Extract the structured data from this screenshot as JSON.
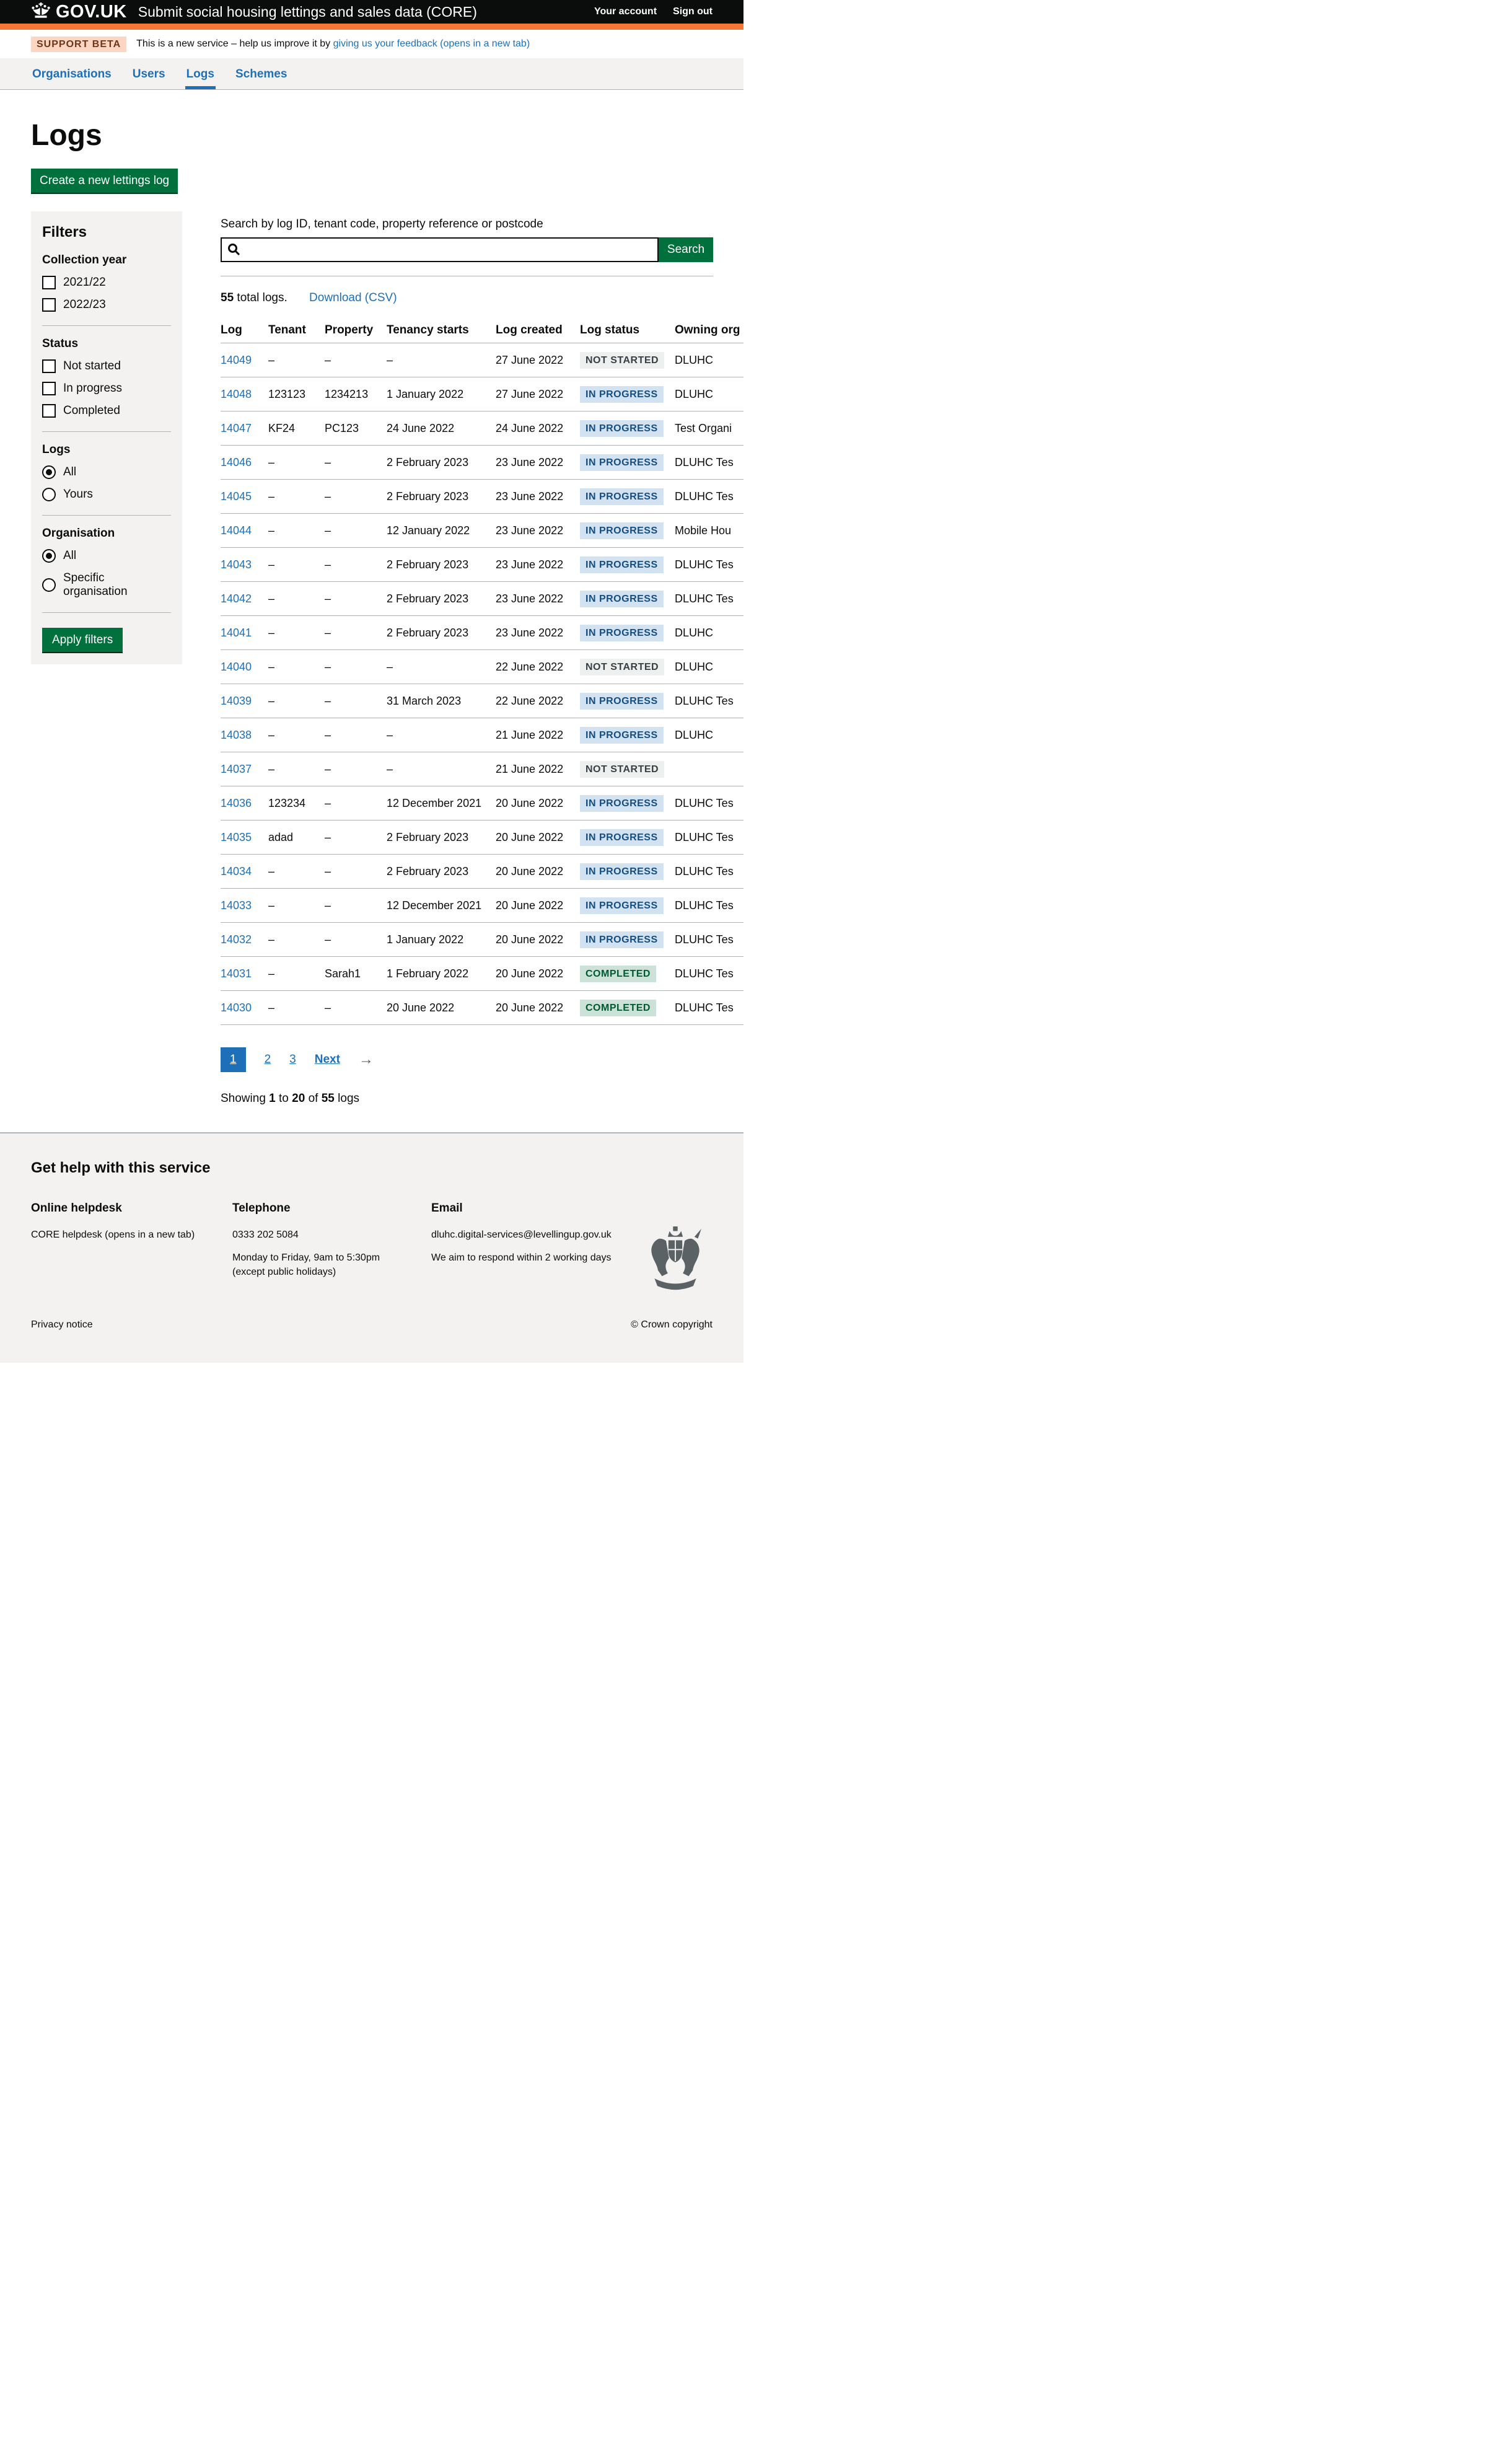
{
  "header": {
    "logo": "GOV.UK",
    "service": "Submit social housing lettings and sales data (CORE)",
    "links": [
      {
        "label": "Your account"
      },
      {
        "label": "Sign out"
      }
    ]
  },
  "phase_banner": {
    "tag": "SUPPORT BETA",
    "text": "This is a new service – help us improve it by",
    "link": "giving us your feedback (opens in a new tab)"
  },
  "nav": {
    "items": [
      {
        "label": "Organisations",
        "active": false
      },
      {
        "label": "Users",
        "active": false
      },
      {
        "label": "Logs",
        "active": true
      },
      {
        "label": "Schemes",
        "active": false
      }
    ]
  },
  "page": {
    "title": "Logs",
    "create_button": "Create a new lettings log"
  },
  "filters": {
    "title": "Filters",
    "apply_button": "Apply filters",
    "groups": [
      {
        "label": "Collection year",
        "type": "checkbox",
        "options": [
          {
            "label": "2021/22",
            "checked": false
          },
          {
            "label": "2022/23",
            "checked": false
          }
        ]
      },
      {
        "label": "Status",
        "type": "checkbox",
        "options": [
          {
            "label": "Not started",
            "checked": false
          },
          {
            "label": "In progress",
            "checked": false
          },
          {
            "label": "Completed",
            "checked": false
          }
        ]
      },
      {
        "label": "Logs",
        "type": "radio",
        "options": [
          {
            "label": "All",
            "checked": true
          },
          {
            "label": "Yours",
            "checked": false
          }
        ]
      },
      {
        "label": "Organisation",
        "type": "radio",
        "options": [
          {
            "label": "All",
            "checked": true
          },
          {
            "label": "Specific organisation",
            "checked": false
          }
        ]
      }
    ]
  },
  "search": {
    "label": "Search by log ID, tenant code, property reference or postcode",
    "value": "",
    "button": "Search"
  },
  "results": {
    "count": "55",
    "label": "total logs.",
    "download_link": "Download (CSV)"
  },
  "table": {
    "columns": [
      "Log",
      "Tenant",
      "Property",
      "Tenancy starts",
      "Log created",
      "Log status",
      "Owning org"
    ],
    "rows": [
      {
        "log": "14049",
        "tenant": "–",
        "property": "–",
        "tenancy": "–",
        "created": "27 June 2022",
        "status": {
          "label": "NOT STARTED",
          "kind": "grey"
        },
        "owning": "DLUHC"
      },
      {
        "log": "14048",
        "tenant": "123123",
        "property": "1234213",
        "tenancy": "1 January 2022",
        "created": "27 June 2022",
        "status": {
          "label": "IN PROGRESS",
          "kind": "blue"
        },
        "owning": "DLUHC"
      },
      {
        "log": "14047",
        "tenant": "KF24",
        "property": "PC123",
        "tenancy": "24 June 2022",
        "created": "24 June 2022",
        "status": {
          "label": "IN PROGRESS",
          "kind": "blue"
        },
        "owning": "Test Organi"
      },
      {
        "log": "14046",
        "tenant": "–",
        "property": "–",
        "tenancy": "2 February 2023",
        "created": "23 June 2022",
        "status": {
          "label": "IN PROGRESS",
          "kind": "blue"
        },
        "owning": "DLUHC Tes"
      },
      {
        "log": "14045",
        "tenant": "–",
        "property": "–",
        "tenancy": "2 February 2023",
        "created": "23 June 2022",
        "status": {
          "label": "IN PROGRESS",
          "kind": "blue"
        },
        "owning": "DLUHC Tes"
      },
      {
        "log": "14044",
        "tenant": "–",
        "property": "–",
        "tenancy": "12 January 2022",
        "created": "23 June 2022",
        "status": {
          "label": "IN PROGRESS",
          "kind": "blue"
        },
        "owning": "Mobile Hou"
      },
      {
        "log": "14043",
        "tenant": "–",
        "property": "–",
        "tenancy": "2 February 2023",
        "created": "23 June 2022",
        "status": {
          "label": "IN PROGRESS",
          "kind": "blue"
        },
        "owning": "DLUHC Tes"
      },
      {
        "log": "14042",
        "tenant": "–",
        "property": "–",
        "tenancy": "2 February 2023",
        "created": "23 June 2022",
        "status": {
          "label": "IN PROGRESS",
          "kind": "blue"
        },
        "owning": "DLUHC Tes"
      },
      {
        "log": "14041",
        "tenant": "–",
        "property": "–",
        "tenancy": "2 February 2023",
        "created": "23 June 2022",
        "status": {
          "label": "IN PROGRESS",
          "kind": "blue"
        },
        "owning": "DLUHC"
      },
      {
        "log": "14040",
        "tenant": "–",
        "property": "–",
        "tenancy": "–",
        "created": "22 June 2022",
        "status": {
          "label": "NOT STARTED",
          "kind": "grey"
        },
        "owning": "DLUHC"
      },
      {
        "log": "14039",
        "tenant": "–",
        "property": "–",
        "tenancy": "31 March 2023",
        "created": "22 June 2022",
        "status": {
          "label": "IN PROGRESS",
          "kind": "blue"
        },
        "owning": "DLUHC Tes"
      },
      {
        "log": "14038",
        "tenant": "–",
        "property": "–",
        "tenancy": "–",
        "created": "21 June 2022",
        "status": {
          "label": "IN PROGRESS",
          "kind": "blue"
        },
        "owning": "DLUHC"
      },
      {
        "log": "14037",
        "tenant": "–",
        "property": "–",
        "tenancy": "–",
        "created": "21 June 2022",
        "status": {
          "label": "NOT STARTED",
          "kind": "grey"
        },
        "owning": ""
      },
      {
        "log": "14036",
        "tenant": "123234",
        "property": "–",
        "tenancy": "12 December 2021",
        "created": "20 June 2022",
        "status": {
          "label": "IN PROGRESS",
          "kind": "blue"
        },
        "owning": "DLUHC Tes"
      },
      {
        "log": "14035",
        "tenant": "adad",
        "property": "–",
        "tenancy": "2 February 2023",
        "created": "20 June 2022",
        "status": {
          "label": "IN PROGRESS",
          "kind": "blue"
        },
        "owning": "DLUHC Tes"
      },
      {
        "log": "14034",
        "tenant": "–",
        "property": "–",
        "tenancy": "2 February 2023",
        "created": "20 June 2022",
        "status": {
          "label": "IN PROGRESS",
          "kind": "blue"
        },
        "owning": "DLUHC Tes"
      },
      {
        "log": "14033",
        "tenant": "–",
        "property": "–",
        "tenancy": "12 December 2021",
        "created": "20 June 2022",
        "status": {
          "label": "IN PROGRESS",
          "kind": "blue"
        },
        "owning": "DLUHC Tes"
      },
      {
        "log": "14032",
        "tenant": "–",
        "property": "–",
        "tenancy": "1 January 2022",
        "created": "20 June 2022",
        "status": {
          "label": "IN PROGRESS",
          "kind": "blue"
        },
        "owning": "DLUHC Tes"
      },
      {
        "log": "14031",
        "tenant": "–",
        "property": "Sarah1",
        "tenancy": "1 February 2022",
        "created": "20 June 2022",
        "status": {
          "label": "COMPLETED",
          "kind": "green"
        },
        "owning": "DLUHC Tes"
      },
      {
        "log": "14030",
        "tenant": "–",
        "property": "–",
        "tenancy": "20 June 2022",
        "created": "20 June 2022",
        "status": {
          "label": "COMPLETED",
          "kind": "green"
        },
        "owning": "DLUHC Tes"
      }
    ]
  },
  "pagination": {
    "pages": [
      {
        "label": "1",
        "active": true
      },
      {
        "label": "2",
        "active": false
      },
      {
        "label": "3",
        "active": false
      }
    ],
    "next": "Next",
    "arrow": "→"
  },
  "showing": {
    "prefix": "Showing",
    "from": "1",
    "to_word": "to",
    "to": "20",
    "of_word": "of",
    "total": "55",
    "suffix": "logs"
  },
  "footer": {
    "heading": "Get help with this service",
    "helpdesk": {
      "title": "Online helpdesk",
      "link": "CORE helpdesk (opens in a new tab)"
    },
    "telephone": {
      "title": "Telephone",
      "number": "0333 202 5084",
      "hours": "Monday to Friday, 9am to 5:30pm",
      "holidays": "(except public holidays)"
    },
    "email": {
      "title": "Email",
      "link": "dluhc.digital-services@levellingup.gov.uk",
      "note": "We aim to respond within 2 working days"
    },
    "privacy_link": "Privacy notice",
    "copyright": "© Crown copyright"
  },
  "colors": {
    "header_bar": "#0b0c0c",
    "header_border_orange": "#f47738",
    "link_blue": "#1d70b8",
    "button_green": "#00703c",
    "panel_grey": "#f3f2f1",
    "border_grey": "#b1b4b6",
    "tag_grey_bg": "#eeefef",
    "tag_grey_text": "#383f43",
    "tag_blue_bg": "#d2e2f1",
    "tag_blue_text": "#144e81",
    "tag_green_bg": "#cce2d8",
    "tag_green_text": "#005a30",
    "beta_tag_bg": "#fcd6c3",
    "beta_tag_text": "#6e3619"
  }
}
